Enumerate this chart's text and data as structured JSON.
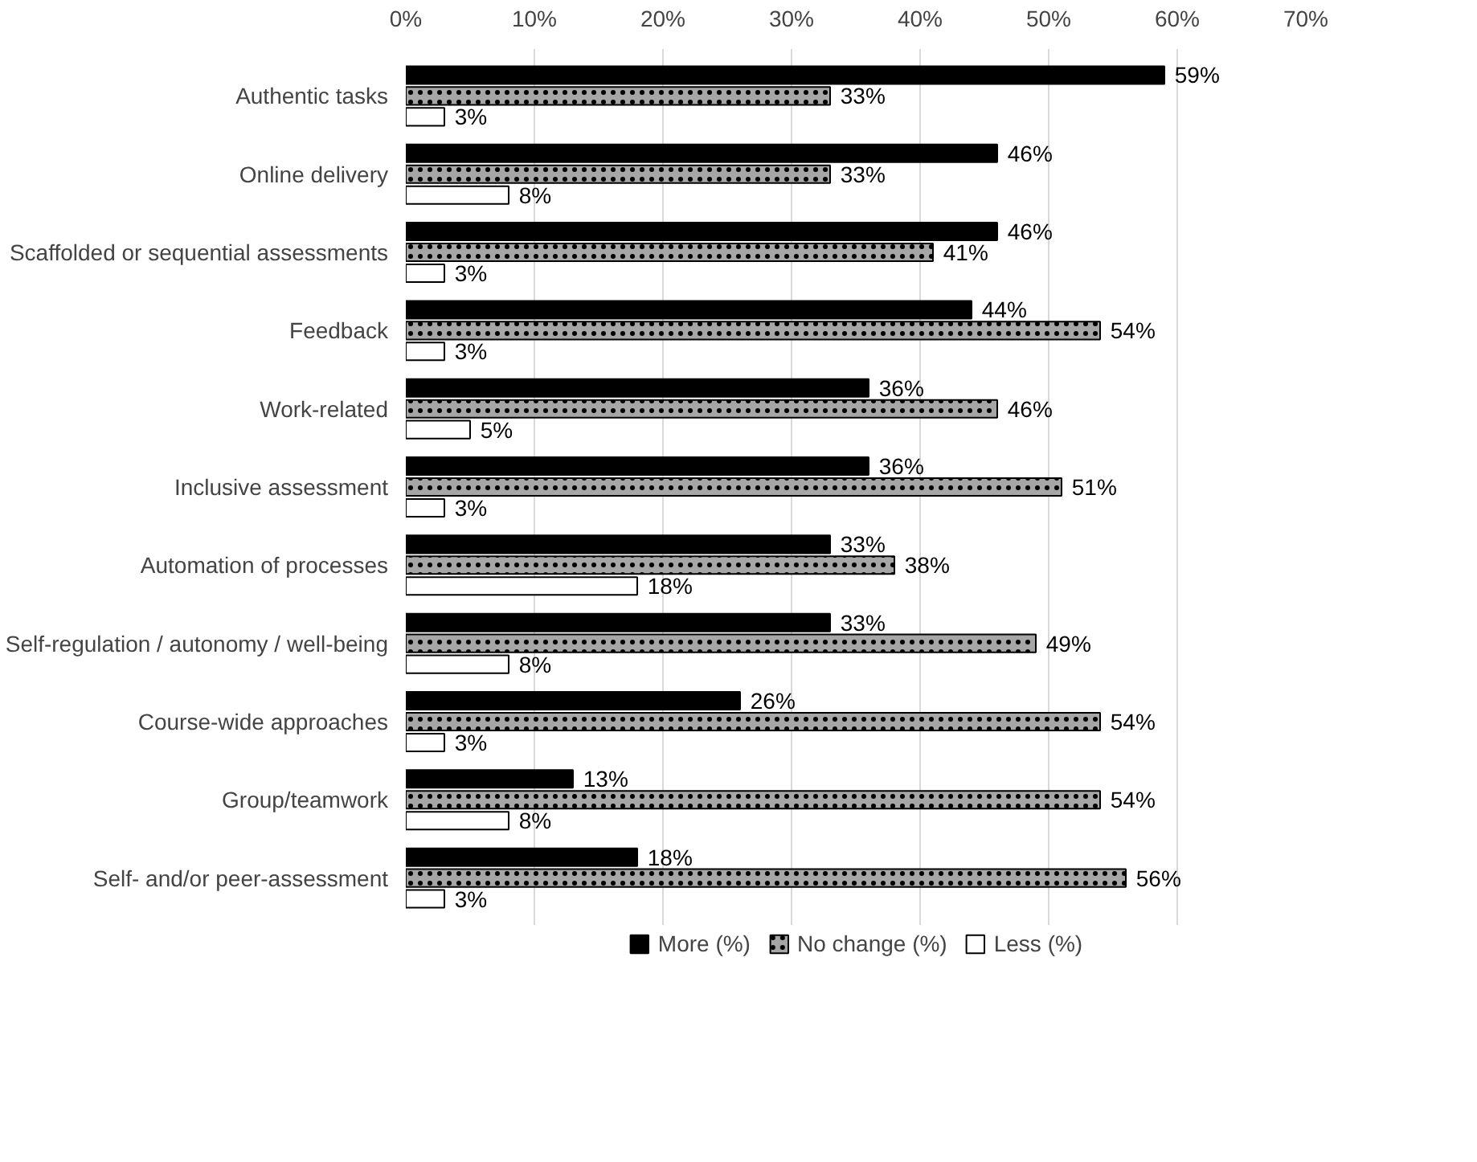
{
  "chart_data": {
    "type": "bar",
    "orientation": "horizontal",
    "categories": [
      "Authentic tasks",
      "Online delivery",
      "Scaffolded or sequential assessments",
      "Feedback",
      "Work-related",
      "Inclusive assessment",
      "Automation of processes",
      "Self-regulation / autonomy / well-being",
      "Course-wide approaches",
      "Group/teamwork",
      "Self- and/or peer-assessment"
    ],
    "series": [
      {
        "name": "More (%)",
        "color": "#000000",
        "values": [
          59,
          46,
          46,
          44,
          36,
          36,
          33,
          33,
          26,
          13,
          18
        ],
        "value_labels": [
          "59%",
          "46%",
          "46%",
          "44%",
          "36%",
          "36%",
          "33%",
          "33%",
          "26%",
          "13%",
          "18%"
        ]
      },
      {
        "name": "No change (%)",
        "color": "#a6a6a6",
        "values": [
          33,
          33,
          41,
          54,
          46,
          51,
          38,
          49,
          54,
          54,
          56
        ],
        "value_labels": [
          "33%",
          "33%",
          "41%",
          "54%",
          "46%",
          "51%",
          "38%",
          "49%",
          "54%",
          "54%",
          "56%"
        ]
      },
      {
        "name": "Less (%)",
        "color": "#ffffff",
        "values": [
          3,
          8,
          3,
          3,
          5,
          3,
          18,
          8,
          3,
          8,
          3
        ],
        "value_labels": [
          "3%",
          "8%",
          "3%",
          "3%",
          "5%",
          "3%",
          "18%",
          "8%",
          "3%",
          "8%",
          "3%"
        ]
      }
    ],
    "xlim": [
      0,
      70
    ],
    "xticks": [
      {
        "value": 0,
        "label": "0%"
      },
      {
        "value": 10,
        "label": "10%"
      },
      {
        "value": 20,
        "label": "20%"
      },
      {
        "value": 30,
        "label": "30%"
      },
      {
        "value": 40,
        "label": "40%"
      },
      {
        "value": 50,
        "label": "50%"
      },
      {
        "value": 60,
        "label": "60%"
      },
      {
        "value": 70,
        "label": "70%"
      }
    ],
    "grid": "x",
    "legend": "bottom"
  }
}
